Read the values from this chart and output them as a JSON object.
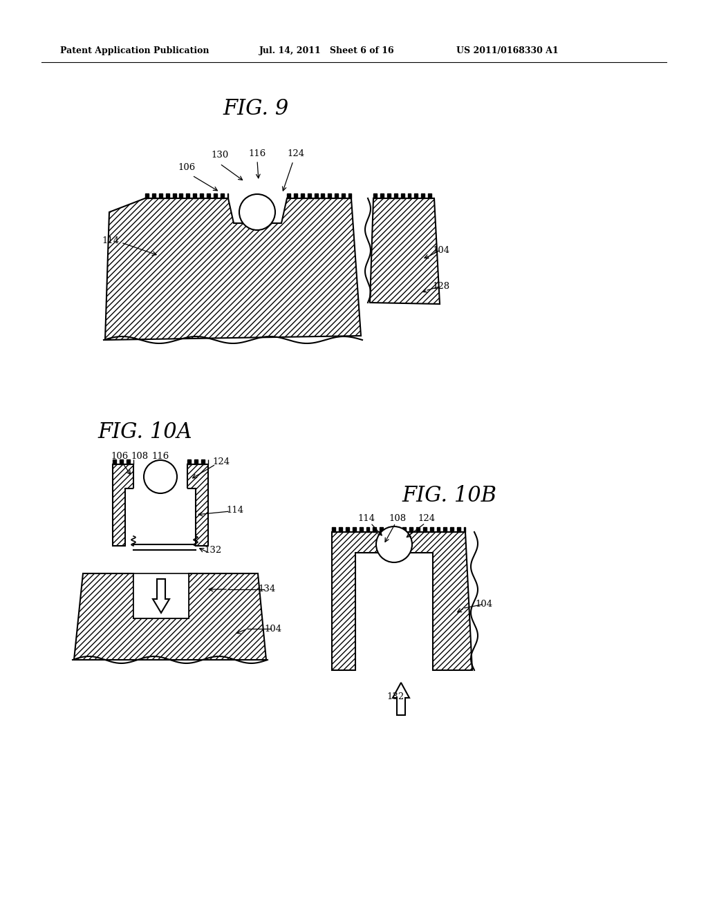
{
  "bg_color": "#ffffff",
  "line_color": "#000000",
  "header_left": "Patent Application Publication",
  "header_mid": "Jul. 14, 2011   Sheet 6 of 16",
  "header_right": "US 2011/0168330 A1",
  "fig9_label": "FIG. 9",
  "fig10a_label": "FIG. 10A",
  "fig10b_label": "FIG. 10B"
}
